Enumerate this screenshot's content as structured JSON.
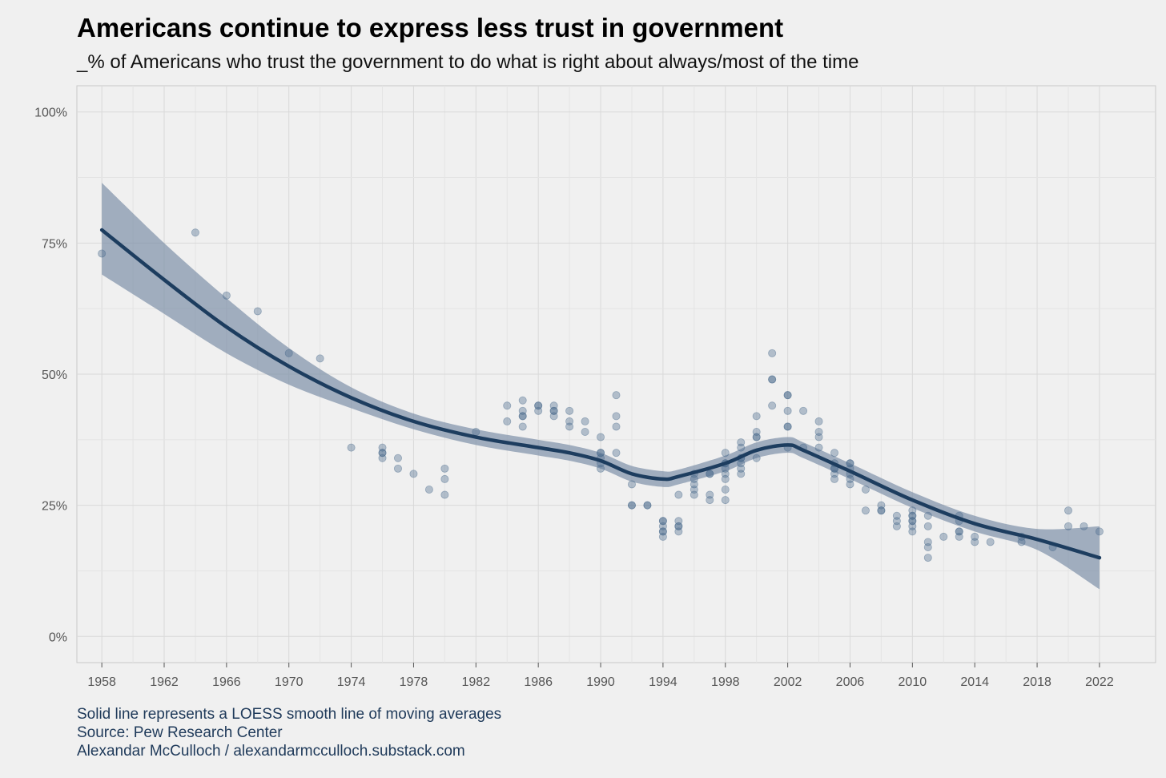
{
  "header": {
    "title": "Americans continue to express less trust in government",
    "subtitle": "_% of Americans who trust the government to do what is right about always/most of the time"
  },
  "caption": {
    "line1": "Solid line represents a LOESS smooth line of moving averages",
    "line2": "Source: Pew Research Center",
    "line3": "Alexandar McCulloch / alexandarmcculloch.substack.com"
  },
  "chart_data": {
    "type": "scatter",
    "title": "Americans continue to express less trust in government",
    "subtitle": "_% of Americans who trust the government to do what is right about always/most of the time",
    "xlabel": "",
    "ylabel": "",
    "xlim": [
      1956.4,
      2025.6
    ],
    "ylim": [
      -5,
      105
    ],
    "x_ticks": [
      1958,
      1962,
      1966,
      1970,
      1974,
      1978,
      1982,
      1986,
      1990,
      1994,
      1998,
      2002,
      2006,
      2010,
      2014,
      2018,
      2022
    ],
    "x_tick_labels": [
      "1958",
      "1962",
      "1966",
      "1970",
      "1974",
      "1978",
      "1982",
      "1986",
      "1990",
      "1994",
      "1998",
      "2002",
      "2006",
      "2010",
      "2014",
      "2018",
      "2022"
    ],
    "y_ticks": [
      0,
      25,
      50,
      75,
      100
    ],
    "y_tick_labels": [
      "0%",
      "25%",
      "50%",
      "75%",
      "100%"
    ],
    "grid": true,
    "colors": {
      "points": "#4a6a8c",
      "line": "#1d3d5f",
      "band": "#7d90a8",
      "background": "#f0f0f0",
      "grid": "#d9d9d9"
    },
    "points": [
      [
        1958,
        73
      ],
      [
        1964,
        77
      ],
      [
        1966,
        65
      ],
      [
        1968,
        62
      ],
      [
        1970,
        54
      ],
      [
        1972,
        53
      ],
      [
        1974,
        36
      ],
      [
        1976,
        34
      ],
      [
        1976,
        35
      ],
      [
        1976,
        35
      ],
      [
        1976,
        36
      ],
      [
        1977,
        32
      ],
      [
        1977,
        34
      ],
      [
        1978,
        31
      ],
      [
        1979,
        28
      ],
      [
        1980,
        27
      ],
      [
        1980,
        30
      ],
      [
        1980,
        32
      ],
      [
        1982,
        39
      ],
      [
        1984,
        41
      ],
      [
        1984,
        44
      ],
      [
        1985,
        40
      ],
      [
        1985,
        42
      ],
      [
        1985,
        42
      ],
      [
        1985,
        43
      ],
      [
        1985,
        45
      ],
      [
        1986,
        43
      ],
      [
        1986,
        44
      ],
      [
        1986,
        44
      ],
      [
        1987,
        42
      ],
      [
        1987,
        43
      ],
      [
        1987,
        43
      ],
      [
        1987,
        44
      ],
      [
        1988,
        40
      ],
      [
        1988,
        41
      ],
      [
        1988,
        43
      ],
      [
        1989,
        39
      ],
      [
        1989,
        41
      ],
      [
        1990,
        32
      ],
      [
        1990,
        33
      ],
      [
        1990,
        34
      ],
      [
        1990,
        35
      ],
      [
        1990,
        35
      ],
      [
        1990,
        38
      ],
      [
        1991,
        35
      ],
      [
        1991,
        40
      ],
      [
        1991,
        42
      ],
      [
        1991,
        46
      ],
      [
        1992,
        25
      ],
      [
        1992,
        25
      ],
      [
        1992,
        29
      ],
      [
        1993,
        25
      ],
      [
        1993,
        25
      ],
      [
        1994,
        19
      ],
      [
        1994,
        20
      ],
      [
        1994,
        20
      ],
      [
        1994,
        21
      ],
      [
        1994,
        22
      ],
      [
        1994,
        22
      ],
      [
        1995,
        20
      ],
      [
        1995,
        21
      ],
      [
        1995,
        21
      ],
      [
        1995,
        22
      ],
      [
        1995,
        27
      ],
      [
        1996,
        27
      ],
      [
        1996,
        28
      ],
      [
        1996,
        29
      ],
      [
        1996,
        30
      ],
      [
        1996,
        31
      ],
      [
        1997,
        26
      ],
      [
        1997,
        27
      ],
      [
        1997,
        31
      ],
      [
        1997,
        31
      ],
      [
        1998,
        26
      ],
      [
        1998,
        28
      ],
      [
        1998,
        30
      ],
      [
        1998,
        31
      ],
      [
        1998,
        32
      ],
      [
        1998,
        33
      ],
      [
        1998,
        33
      ],
      [
        1998,
        35
      ],
      [
        1999,
        31
      ],
      [
        1999,
        32
      ],
      [
        1999,
        33
      ],
      [
        1999,
        34
      ],
      [
        1999,
        34
      ],
      [
        1999,
        36
      ],
      [
        1999,
        37
      ],
      [
        2000,
        34
      ],
      [
        2000,
        38
      ],
      [
        2000,
        38
      ],
      [
        2000,
        39
      ],
      [
        2000,
        42
      ],
      [
        2001,
        44
      ],
      [
        2001,
        49
      ],
      [
        2001,
        49
      ],
      [
        2001,
        54
      ],
      [
        2002,
        36
      ],
      [
        2002,
        40
      ],
      [
        2002,
        40
      ],
      [
        2002,
        43
      ],
      [
        2002,
        46
      ],
      [
        2002,
        46
      ],
      [
        2003,
        36
      ],
      [
        2003,
        43
      ],
      [
        2004,
        36
      ],
      [
        2004,
        38
      ],
      [
        2004,
        39
      ],
      [
        2004,
        41
      ],
      [
        2005,
        30
      ],
      [
        2005,
        31
      ],
      [
        2005,
        32
      ],
      [
        2005,
        32
      ],
      [
        2005,
        33
      ],
      [
        2005,
        35
      ],
      [
        2006,
        29
      ],
      [
        2006,
        30
      ],
      [
        2006,
        31
      ],
      [
        2006,
        32
      ],
      [
        2006,
        33
      ],
      [
        2006,
        33
      ],
      [
        2007,
        24
      ],
      [
        2007,
        28
      ],
      [
        2008,
        24
      ],
      [
        2008,
        24
      ],
      [
        2008,
        25
      ],
      [
        2009,
        21
      ],
      [
        2009,
        22
      ],
      [
        2009,
        23
      ],
      [
        2010,
        20
      ],
      [
        2010,
        21
      ],
      [
        2010,
        22
      ],
      [
        2010,
        22
      ],
      [
        2010,
        23
      ],
      [
        2010,
        23
      ],
      [
        2010,
        24
      ],
      [
        2011,
        15
      ],
      [
        2011,
        17
      ],
      [
        2011,
        18
      ],
      [
        2011,
        21
      ],
      [
        2011,
        23
      ],
      [
        2012,
        19
      ],
      [
        2013,
        19
      ],
      [
        2013,
        20
      ],
      [
        2013,
        20
      ],
      [
        2013,
        22
      ],
      [
        2013,
        23
      ],
      [
        2014,
        18
      ],
      [
        2014,
        19
      ],
      [
        2015,
        18
      ],
      [
        2017,
        18
      ],
      [
        2017,
        19
      ],
      [
        2019,
        17
      ],
      [
        2020,
        21
      ],
      [
        2020,
        24
      ],
      [
        2021,
        21
      ],
      [
        2022,
        20
      ]
    ],
    "loess_line": {
      "x": [
        1958,
        1962,
        1966,
        1970,
        1974,
        1978,
        1982,
        1986,
        1988,
        1990,
        1992,
        1994,
        1995,
        1998,
        2000,
        2002,
        2003,
        2006,
        2010,
        2014,
        2018,
        2022
      ],
      "y": [
        77.5,
        68,
        59,
        51.5,
        45.5,
        41,
        38,
        36,
        35,
        33.5,
        31,
        30,
        30.5,
        33,
        35.5,
        36.5,
        35.5,
        31.5,
        26,
        21.5,
        18.5,
        15
      ]
    },
    "confidence_band": {
      "x": [
        1958,
        1962,
        1966,
        1970,
        1974,
        1978,
        1982,
        1986,
        1988,
        1990,
        1992,
        1994,
        1995,
        1998,
        2000,
        2002,
        2003,
        2006,
        2010,
        2014,
        2018,
        2022
      ],
      "upper": [
        86.5,
        75,
        64.5,
        55,
        47.5,
        42.5,
        39.5,
        37.5,
        36.5,
        35,
        32.5,
        31.5,
        31.8,
        34.5,
        37,
        38,
        37,
        33,
        27.5,
        23,
        20.5,
        21
      ],
      "lower": [
        69,
        61.5,
        54,
        48,
        43.5,
        39.5,
        36.5,
        34.5,
        33.5,
        32,
        29.5,
        28.5,
        29,
        31.5,
        34,
        35,
        34,
        30,
        24.5,
        20,
        16.5,
        9
      ]
    }
  }
}
